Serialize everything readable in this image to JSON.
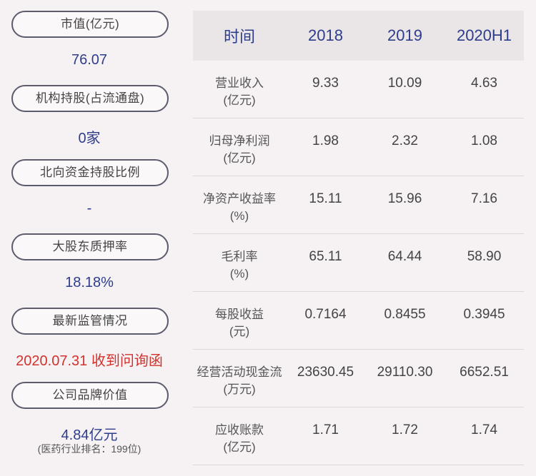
{
  "left": {
    "items": [
      {
        "label": "市值(亿元)",
        "value": "76.07"
      },
      {
        "label": "机构持股(占流通盘)",
        "value": "0家"
      },
      {
        "label": "北向资金持股比例",
        "value": "-"
      },
      {
        "label": "大股东质押率",
        "value": "18.18%"
      },
      {
        "label": "最新监管情况",
        "value": "2020.07.31 收到问询函"
      },
      {
        "label": "公司品牌价值",
        "value": "4.84亿元",
        "note": "(医药行业排名：199位)"
      }
    ]
  },
  "table": {
    "headers": [
      "时间",
      "2018",
      "2019",
      "2020H1"
    ],
    "rows": [
      {
        "label1": "营业收入",
        "label2": "(亿元)",
        "values": [
          "9.33",
          "10.09",
          "4.63"
        ]
      },
      {
        "label1": "归母净利润",
        "label2": "(亿元)",
        "values": [
          "1.98",
          "2.32",
          "1.08"
        ]
      },
      {
        "label1": "净资产收益率",
        "label2": "(%)",
        "values": [
          "15.11",
          "15.96",
          "7.16"
        ]
      },
      {
        "label1": "毛利率",
        "label2": "(%)",
        "values": [
          "65.11",
          "64.44",
          "58.90"
        ]
      },
      {
        "label1": "每股收益",
        "label2": "(元)",
        "values": [
          "0.7164",
          "0.8455",
          "0.3945"
        ]
      },
      {
        "label1": "经营活动现金流",
        "label2": "(万元)",
        "values": [
          "23630.45",
          "29110.30",
          "6652.51"
        ]
      },
      {
        "label1": "应收账款",
        "label2": "(亿元)",
        "values": [
          "1.71",
          "1.72",
          "1.74"
        ]
      }
    ]
  },
  "colors": {
    "background": "#f6f2f4",
    "value_blue": "#2e3d8a",
    "alert_red": "#d2322d",
    "header_bg": "#eae6e8"
  }
}
